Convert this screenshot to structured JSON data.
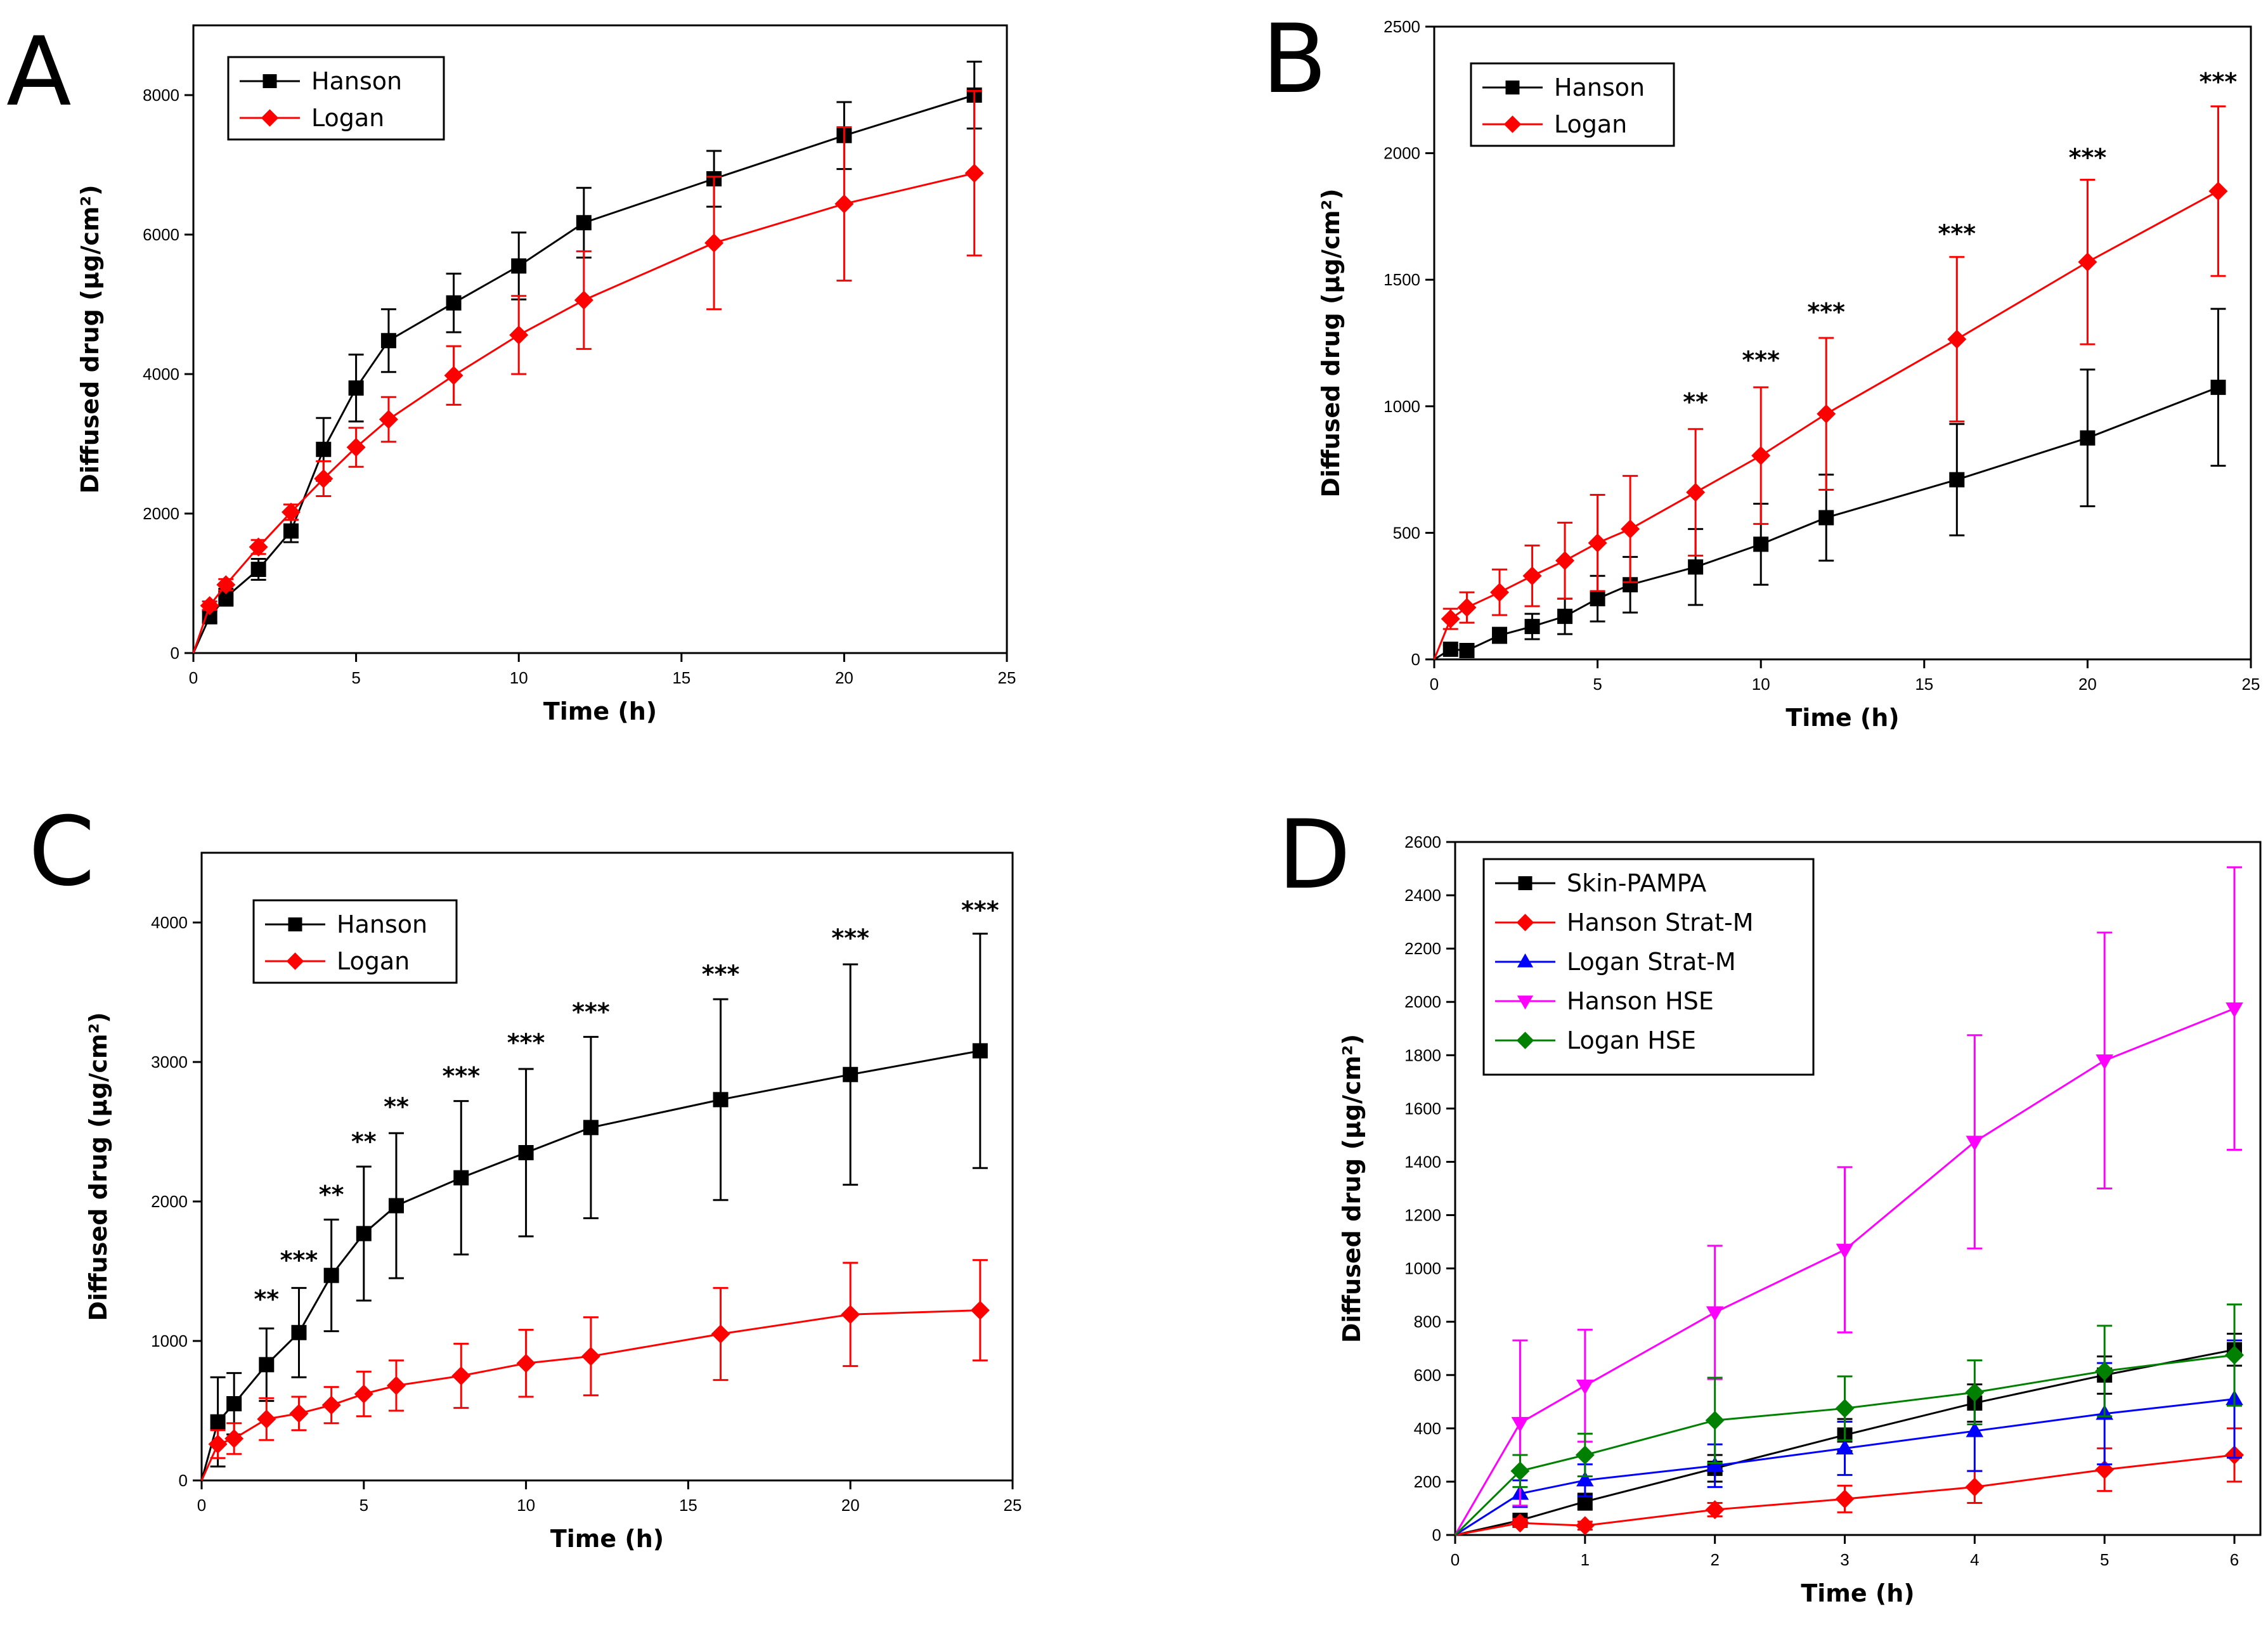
{
  "chart_data": [
    {
      "panel": "A",
      "type": "line",
      "title": "",
      "xlabel": "Time (h)",
      "ylabel": "Diffused drug (µg/cm²)",
      "xlim": [
        0,
        25
      ],
      "ylim": [
        0,
        9000
      ],
      "xticks": [
        0,
        5,
        10,
        15,
        20,
        25
      ],
      "yticks": [
        0,
        2000,
        4000,
        6000,
        8000
      ],
      "legend": "top-left",
      "series": [
        {
          "name": "Hanson",
          "color": "#000000",
          "marker": "square",
          "x": [
            0,
            0.5,
            1,
            2,
            3,
            4,
            5,
            6,
            8,
            10,
            12,
            16,
            20,
            24
          ],
          "y": [
            0,
            520,
            800,
            1200,
            1750,
            2920,
            3800,
            4480,
            5020,
            5550,
            6170,
            6800,
            7420,
            8000
          ],
          "err": [
            0,
            80,
            120,
            150,
            160,
            450,
            480,
            450,
            420,
            480,
            500,
            400,
            480,
            480
          ]
        },
        {
          "name": "Logan",
          "color": "#ff0000",
          "marker": "diamond",
          "x": [
            0,
            0.5,
            1,
            2,
            3,
            4,
            5,
            6,
            8,
            10,
            12,
            16,
            20,
            24
          ],
          "y": [
            0,
            680,
            980,
            1520,
            2020,
            2500,
            2950,
            3350,
            3980,
            4560,
            5060,
            5880,
            6440,
            6880
          ],
          "err": [
            0,
            60,
            80,
            100,
            110,
            250,
            280,
            320,
            420,
            560,
            700,
            950,
            1100,
            1180
          ]
        }
      ],
      "annotations": []
    },
    {
      "panel": "B",
      "type": "line",
      "title": "",
      "xlabel": "Time (h)",
      "ylabel": "Diffused drug (µg/cm²)",
      "xlim": [
        0,
        25
      ],
      "ylim": [
        0,
        2500
      ],
      "xticks": [
        0,
        5,
        10,
        15,
        20,
        25
      ],
      "yticks": [
        0,
        500,
        1000,
        1500,
        2000,
        2500
      ],
      "legend": "top-left",
      "series": [
        {
          "name": "Hanson",
          "color": "#000000",
          "marker": "square",
          "x": [
            0,
            0.5,
            1,
            2,
            3,
            4,
            5,
            6,
            8,
            10,
            12,
            16,
            20,
            24
          ],
          "y": [
            0,
            40,
            35,
            95,
            130,
            170,
            240,
            295,
            365,
            455,
            560,
            710,
            875,
            1075
          ],
          "err": [
            0,
            15,
            15,
            30,
            50,
            70,
            90,
            110,
            150,
            160,
            170,
            220,
            270,
            310
          ]
        },
        {
          "name": "Logan",
          "color": "#ff0000",
          "marker": "diamond",
          "x": [
            0,
            0.5,
            1,
            2,
            3,
            4,
            5,
            6,
            8,
            10,
            12,
            16,
            20,
            24
          ],
          "y": [
            0,
            160,
            205,
            265,
            330,
            390,
            460,
            515,
            660,
            805,
            970,
            1265,
            1570,
            1850
          ],
          "err": [
            0,
            40,
            60,
            90,
            120,
            150,
            190,
            210,
            250,
            270,
            300,
            325,
            325,
            335
          ]
        }
      ],
      "annotations": [
        {
          "x": 8,
          "y": 985,
          "text": "**"
        },
        {
          "x": 10,
          "y": 1150,
          "text": "***"
        },
        {
          "x": 12,
          "y": 1340,
          "text": "***"
        },
        {
          "x": 16,
          "y": 1650,
          "text": "***"
        },
        {
          "x": 20,
          "y": 1950,
          "text": "***"
        },
        {
          "x": 24,
          "y": 2250,
          "text": "***"
        }
      ]
    },
    {
      "panel": "C",
      "type": "line",
      "title": "",
      "xlabel": "Time (h)",
      "ylabel": "Diffused drug (µg/cm²)",
      "xlim": [
        0,
        25
      ],
      "ylim": [
        0,
        4500
      ],
      "xticks": [
        0,
        5,
        10,
        15,
        20,
        25
      ],
      "yticks": [
        0,
        1000,
        2000,
        3000,
        4000
      ],
      "legend": "top-left",
      "series": [
        {
          "name": "Hanson",
          "color": "#000000",
          "marker": "square",
          "x": [
            0,
            0.5,
            1,
            2,
            3,
            4,
            5,
            6,
            8,
            10,
            12,
            16,
            20,
            24
          ],
          "y": [
            0,
            420,
            550,
            830,
            1060,
            1470,
            1770,
            1970,
            2170,
            2350,
            2530,
            2730,
            2910,
            3080
          ],
          "err": [
            0,
            320,
            220,
            260,
            320,
            400,
            480,
            520,
            550,
            600,
            650,
            720,
            790,
            840
          ]
        },
        {
          "name": "Logan",
          "color": "#ff0000",
          "marker": "diamond",
          "x": [
            0,
            0.5,
            1,
            2,
            3,
            4,
            5,
            6,
            8,
            10,
            12,
            16,
            20,
            24
          ],
          "y": [
            0,
            260,
            300,
            440,
            480,
            540,
            620,
            680,
            750,
            840,
            890,
            1050,
            1190,
            1220
          ],
          "err": [
            0,
            100,
            110,
            150,
            120,
            130,
            160,
            180,
            230,
            240,
            280,
            330,
            370,
            360
          ]
        }
      ],
      "annotations": [
        {
          "x": 2,
          "y": 1240,
          "text": "**"
        },
        {
          "x": 3,
          "y": 1520,
          "text": "***"
        },
        {
          "x": 4,
          "y": 1990,
          "text": "**"
        },
        {
          "x": 5,
          "y": 2370,
          "text": "**"
        },
        {
          "x": 6,
          "y": 2620,
          "text": "**"
        },
        {
          "x": 8,
          "y": 2840,
          "text": "***"
        },
        {
          "x": 10,
          "y": 3080,
          "text": "***"
        },
        {
          "x": 12,
          "y": 3300,
          "text": "***"
        },
        {
          "x": 16,
          "y": 3570,
          "text": "***"
        },
        {
          "x": 20,
          "y": 3830,
          "text": "***"
        },
        {
          "x": 24,
          "y": 4030,
          "text": "***"
        }
      ]
    },
    {
      "panel": "D",
      "type": "line",
      "title": "",
      "xlabel": "Time (h)",
      "ylabel": "Diffused drug (µg/cm²)",
      "xlim": [
        0,
        6.2
      ],
      "ylim": [
        0,
        2600
      ],
      "xticks": [
        0,
        1,
        2,
        3,
        4,
        5,
        6
      ],
      "yticks": [
        0,
        200,
        400,
        600,
        800,
        1000,
        1200,
        1400,
        1600,
        1800,
        2000,
        2200,
        2400,
        2600
      ],
      "legend": "top-left",
      "series": [
        {
          "name": "Skin-PAMPA",
          "color": "#000000",
          "marker": "square",
          "x": [
            0,
            0.5,
            1,
            2,
            3,
            4,
            5,
            6
          ],
          "y": [
            0,
            55,
            125,
            250,
            375,
            495,
            600,
            695
          ],
          "err": [
            0,
            15,
            30,
            50,
            60,
            70,
            70,
            60
          ]
        },
        {
          "name": "Hanson Strat-M",
          "color": "#ff0000",
          "marker": "diamond",
          "x": [
            0,
            0.5,
            1,
            2,
            3,
            4,
            5,
            6
          ],
          "y": [
            0,
            45,
            35,
            95,
            135,
            180,
            245,
            300
          ],
          "err": [
            0,
            15,
            15,
            25,
            50,
            60,
            80,
            100
          ]
        },
        {
          "name": "Logan Strat-M",
          "color": "#0000ff",
          "marker": "triangle-up",
          "x": [
            0,
            0.5,
            1,
            2,
            3,
            4,
            5,
            6
          ],
          "y": [
            0,
            155,
            205,
            260,
            325,
            390,
            455,
            510
          ],
          "err": [
            0,
            50,
            60,
            80,
            100,
            150,
            190,
            220
          ]
        },
        {
          "name": "Hanson HSE",
          "color": "#ff00ff",
          "marker": "triangle-down",
          "x": [
            0,
            0.5,
            1,
            2,
            3,
            4,
            5,
            6
          ],
          "y": [
            0,
            420,
            560,
            835,
            1070,
            1475,
            1780,
            1975
          ],
          "err": [
            0,
            310,
            210,
            250,
            310,
            400,
            480,
            530
          ]
        },
        {
          "name": "Logan HSE",
          "color": "#008000",
          "marker": "diamond",
          "x": [
            0,
            0.5,
            1,
            2,
            3,
            4,
            5,
            6
          ],
          "y": [
            0,
            240,
            300,
            430,
            475,
            535,
            615,
            675
          ],
          "err": [
            0,
            60,
            80,
            160,
            120,
            120,
            170,
            190
          ]
        }
      ],
      "annotations": []
    }
  ]
}
